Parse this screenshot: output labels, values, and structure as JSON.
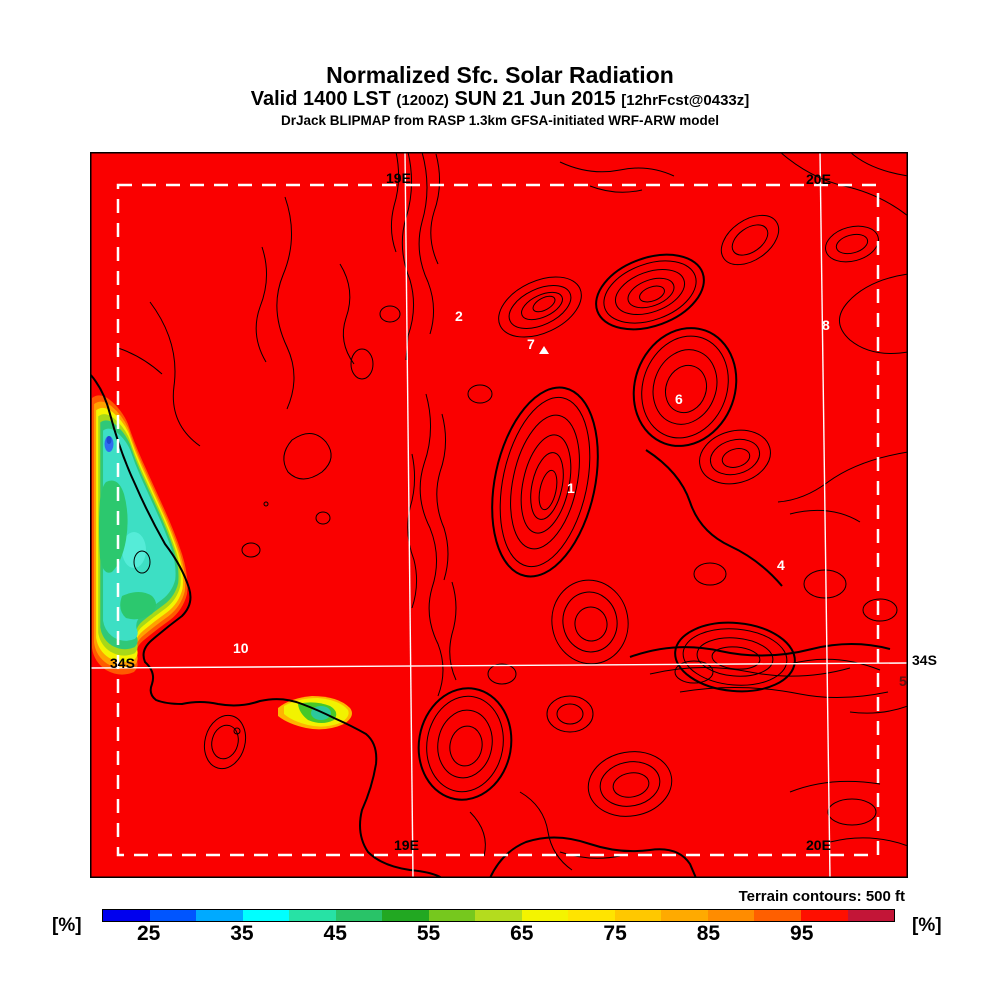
{
  "header": {
    "title": "Normalized Sfc. Solar Radiation",
    "valid_prefix": "Valid 1400 LST",
    "valid_zulu": "(1200Z)",
    "valid_date": "SUN 21 Jun 2015",
    "valid_fcst": "[12hrFcst@0433z]",
    "model_line": "DrJack BLIPMAP from RASP 1.3km GFSA-initiated WRF-ARW model"
  },
  "map": {
    "grid_labels": {
      "top_lon_west": "19E",
      "top_lon_east": "20E",
      "bottom_lon_west": "19E",
      "bottom_lon_east": "20E",
      "lat_west": "34S",
      "lat_east": "34S"
    },
    "sites": [
      "2",
      "7",
      "8",
      "6",
      "1",
      "4",
      "10",
      "5"
    ],
    "footnote": "Terrain contours: 500 ft",
    "colors": {
      "field": "#fa0000",
      "cloud_core": "#3ddfc4",
      "cloud_green": "#2cc86e",
      "contour": "#000000",
      "gridline": "#ffffff"
    }
  },
  "colorbar": {
    "unit_left": "[%]",
    "unit_right": "[%]",
    "range_min": 20,
    "range_max": 105,
    "step": 5,
    "ticks": [
      "25",
      "35",
      "45",
      "55",
      "65",
      "75",
      "85",
      "95"
    ],
    "segments": [
      "#0000ee",
      "#0055ff",
      "#00aaff",
      "#00ffff",
      "#27e2a5",
      "#29c368",
      "#22a822",
      "#76c81e",
      "#b4dc1e",
      "#f4f400",
      "#ffe400",
      "#ffc800",
      "#ffaa00",
      "#ff8c00",
      "#ff5f00",
      "#ff0f00",
      "#c31537"
    ]
  }
}
